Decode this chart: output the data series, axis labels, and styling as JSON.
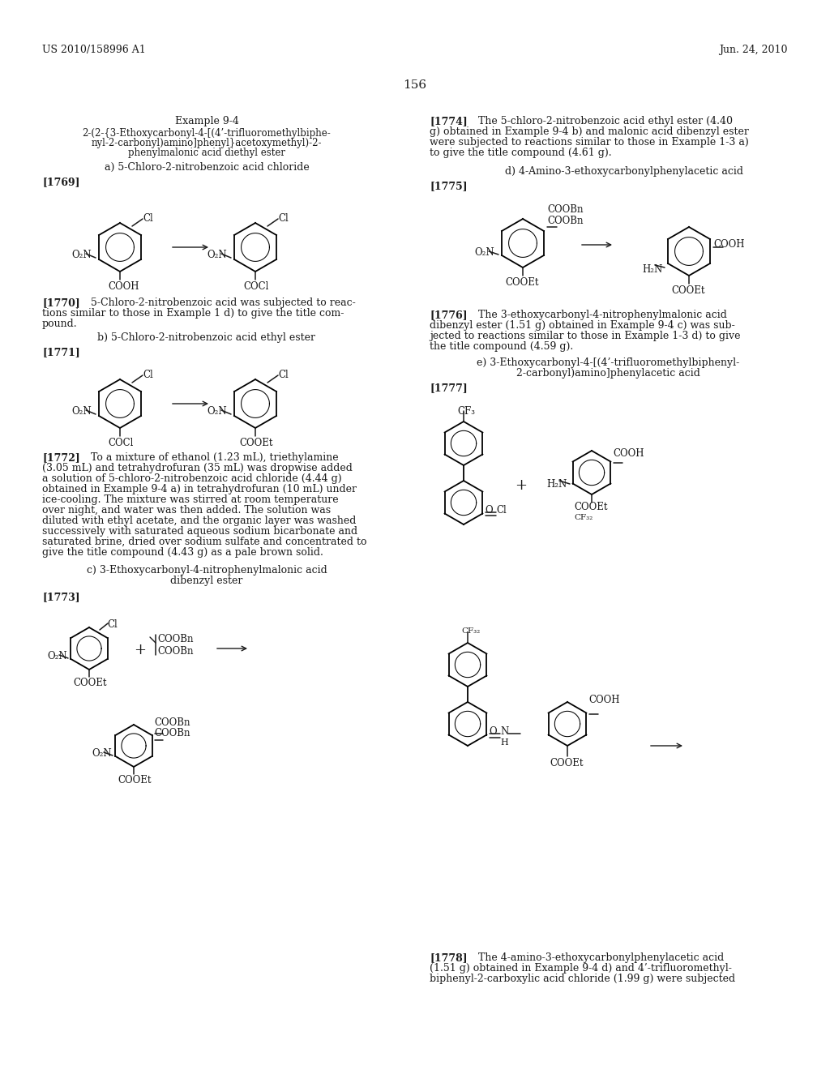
{
  "bg": "#ffffff",
  "header_left": "US 2010/158996 A1",
  "header_right": "Jun. 24, 2010",
  "page_num": "156",
  "lm": 52,
  "rm": 972,
  "col2": 530
}
